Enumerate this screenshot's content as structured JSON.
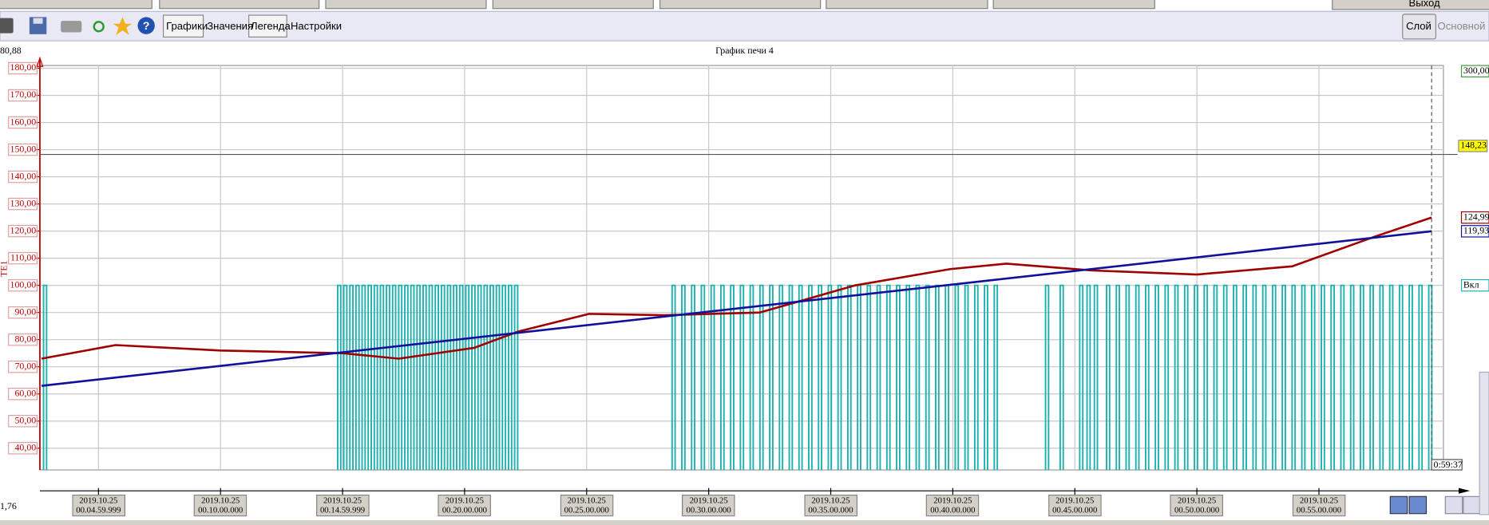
{
  "exit": "Выход",
  "toolbar": {
    "buttons": [
      "Графики",
      "Значения",
      "Легенда",
      "Настройки"
    ],
    "layer": "Слой",
    "main": "Основной"
  },
  "status": {
    "top": "80,88",
    "bottom": "1,76"
  },
  "chart_data": {
    "type": "line",
    "title": "График печи 4",
    "ylabel": "ТЕ1",
    "xlim": [
      2.6,
      60.1
    ],
    "ylim": [
      32,
      181
    ],
    "grid": true,
    "xticks": [
      {
        "value": 4.99998,
        "label": "2019.10.25\n00.04.59.999"
      },
      {
        "value": 10,
        "label": "2019.10.25\n00.10.00.000"
      },
      {
        "value": 14.99998,
        "label": "2019.10.25\n00.14.59.999"
      },
      {
        "value": 20,
        "label": "2019.10.25\n00.20.00.000"
      },
      {
        "value": 25,
        "label": "2019.10.25\n00.25.00.000"
      },
      {
        "value": 30,
        "label": "2019.10.25\n00.30.00.000"
      },
      {
        "value": 35,
        "label": "2019.10.25\n00.35.00.000"
      },
      {
        "value": 40,
        "label": "2019.10.25\n00.40.00.000"
      },
      {
        "value": 45,
        "label": "2019.10.25\n00.45.00.000"
      },
      {
        "value": 50,
        "label": "2019.10.25\n00.50.00.000"
      },
      {
        "value": 55,
        "label": "2019.10.25\n00.55.00.000"
      }
    ],
    "yticks": [
      {
        "value": 40,
        "label": "40,00"
      },
      {
        "value": 50,
        "label": "50,00"
      },
      {
        "value": 60,
        "label": "60,00"
      },
      {
        "value": 70,
        "label": "70,00"
      },
      {
        "value": 80,
        "label": "80,00"
      },
      {
        "value": 90,
        "label": "90,00"
      },
      {
        "value": 100,
        "label": "100,00"
      },
      {
        "value": 110,
        "label": "110,00"
      },
      {
        "value": 120,
        "label": "120,00"
      },
      {
        "value": 130,
        "label": "130,00"
      },
      {
        "value": 140,
        "label": "140,00"
      },
      {
        "value": 150,
        "label": "150,00"
      },
      {
        "value": 160,
        "label": "160,00"
      },
      {
        "value": 170,
        "label": "170,00"
      },
      {
        "value": 180,
        "label": "180,00"
      }
    ],
    "right_top_label": "300,00",
    "threshold": {
      "value": 148.23,
      "label": "148,23",
      "color": "#ffff00"
    },
    "cursor": {
      "x": 59.617,
      "label": "0:59:37"
    },
    "series": [
      {
        "style": "line",
        "color": "#a00000",
        "x": [
          2.67,
          5.7,
          10,
          15,
          17.3,
          20.4,
          22.2,
          25.1,
          28.2,
          32.1,
          36,
          39.9,
          42.2,
          45.7,
          50,
          53.9,
          57.3,
          59.617
        ],
        "values": [
          73,
          78,
          76,
          75,
          73,
          77,
          83,
          89.5,
          89,
          90,
          100,
          106,
          108,
          105.5,
          104,
          107,
          118,
          124.99
        ],
        "value_labels": [
          null,
          null,
          null,
          null,
          null,
          null,
          null,
          null,
          null,
          null,
          null,
          null,
          null,
          null,
          null,
          null,
          null,
          "124,99"
        ]
      },
      {
        "style": "line",
        "color": "#10109a",
        "x": [
          2.67,
          59.617
        ],
        "values": [
          63,
          119.93
        ],
        "value_labels": [
          null,
          "119,93"
        ]
      },
      {
        "style": "pulse",
        "color": "#1fb0b0",
        "label": "Вкл",
        "x": [
          2.75,
          14.8,
          15.05,
          15.3,
          15.55,
          15.8,
          16.05,
          16.3,
          16.55,
          16.8,
          17.05,
          17.3,
          17.55,
          17.8,
          18.05,
          18.3,
          18.55,
          18.8,
          19.05,
          19.3,
          19.55,
          19.8,
          20.05,
          20.3,
          20.55,
          20.8,
          21.05,
          21.3,
          21.55,
          21.8,
          22.05,
          28.5,
          28.9,
          29.3,
          29.7,
          30.1,
          30.5,
          30.9,
          31.3,
          31.7,
          32.1,
          32.5,
          32.9,
          33.3,
          33.7,
          34.1,
          34.5,
          34.9,
          35.3,
          35.7,
          36.1,
          36.5,
          36.9,
          37.3,
          37.7,
          38.1,
          38.5,
          38.9,
          39.3,
          39.7,
          40.1,
          40.5,
          40.9,
          41.3,
          41.7,
          43.8,
          44.4,
          45.2,
          45.5,
          45.8,
          46.3,
          46.7,
          47.1,
          47.5,
          47.9,
          48.3,
          48.7,
          49.1,
          49.5,
          49.9,
          50.3,
          50.7,
          51.1,
          51.5,
          51.9,
          52.3,
          52.7,
          53.1,
          53.5,
          53.9,
          54.3,
          54.7,
          55.1,
          55.5,
          55.9,
          56.3,
          56.7,
          57.1,
          57.5,
          57.9,
          58.3,
          58.7,
          59.1,
          59.5
        ],
        "values": [
          100,
          100,
          100,
          100,
          100,
          100,
          100,
          100,
          100,
          100,
          100,
          100,
          100,
          100,
          100,
          100,
          100,
          100,
          100,
          100,
          100,
          100,
          100,
          100,
          100,
          100,
          100,
          100,
          100,
          100,
          100,
          100,
          100,
          100,
          100,
          100,
          100,
          100,
          100,
          100,
          100,
          100,
          100,
          100,
          100,
          100,
          100,
          100,
          100,
          100,
          100,
          100,
          100,
          100,
          100,
          100,
          100,
          100,
          100,
          100,
          100,
          100,
          100,
          100,
          100,
          100,
          100,
          100,
          100,
          100,
          100,
          100,
          100,
          100,
          100,
          100,
          100,
          100,
          100,
          100,
          100,
          100,
          100,
          100,
          100,
          100,
          100,
          100,
          100,
          100,
          100,
          100,
          100,
          100,
          100,
          100,
          100,
          100,
          100,
          100,
          100,
          100,
          100,
          100
        ]
      }
    ]
  }
}
